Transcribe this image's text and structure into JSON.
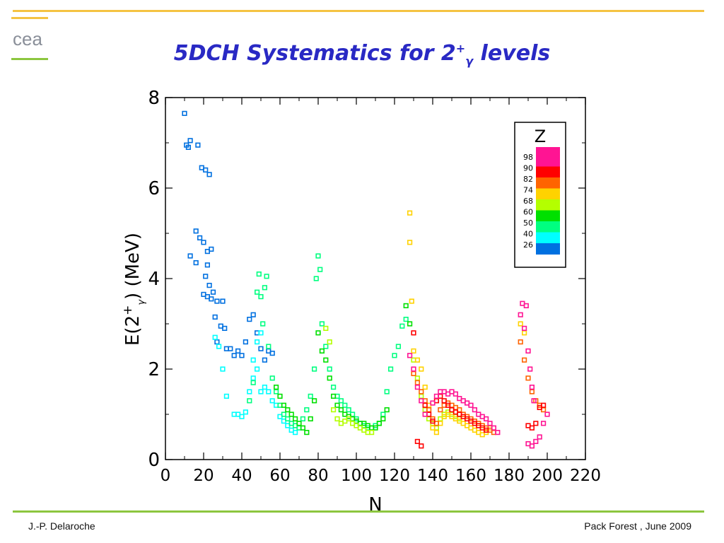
{
  "slide": {
    "title_main": "5DCH Systematics for 2",
    "title_sup": "+",
    "title_sub": "γ",
    "title_tail": " levels",
    "logo_text": "cea",
    "footer_left": "J.-P. Delaroche",
    "footer_right": "Pack Forest , June 2009",
    "colors": {
      "title": "#2929c4",
      "top_rule": "#f5c342",
      "bottom_rule": "#8cc63f",
      "logo": "#8a8f99"
    }
  },
  "chart_data": {
    "type": "scatter",
    "title": "",
    "xlabel": "N",
    "ylabel_main": "E(2",
    "ylabel_sup": "+",
    "ylabel_sub": "γ",
    "ylabel_tail": ") (MeV)",
    "xlim": [
      0,
      220
    ],
    "ylim": [
      0,
      8
    ],
    "xticks": [
      0,
      20,
      40,
      60,
      80,
      100,
      120,
      140,
      160,
      180,
      200,
      220
    ],
    "yticks": [
      0,
      2,
      4,
      6,
      8
    ],
    "grid": false,
    "legend": {
      "title": "Z",
      "placement": "top-right",
      "labels": [
        "98",
        "90",
        "82",
        "74",
        "68",
        "60",
        "50",
        "40",
        "26"
      ],
      "colors": [
        "#ff1493",
        "#ff0000",
        "#ff6400",
        "#ffd200",
        "#b4ff00",
        "#00e000",
        "#00ff80",
        "#00ffff",
        "#0070e0"
      ]
    },
    "series": [
      {
        "name": "26",
        "color": "#0070e0",
        "points": [
          [
            10,
            7.65
          ],
          [
            11,
            6.95
          ],
          [
            12,
            6.9
          ],
          [
            13,
            7.05
          ],
          [
            17,
            6.95
          ],
          [
            19,
            6.45
          ],
          [
            21,
            6.4
          ],
          [
            23,
            6.3
          ],
          [
            13,
            4.5
          ],
          [
            16,
            5.05
          ],
          [
            18,
            4.9
          ],
          [
            16,
            4.35
          ],
          [
            20,
            4.8
          ],
          [
            22,
            4.6
          ],
          [
            24,
            4.65
          ],
          [
            22,
            4.3
          ],
          [
            21,
            4.05
          ],
          [
            23,
            3.85
          ],
          [
            22,
            3.6
          ],
          [
            25,
            3.7
          ],
          [
            27,
            3.5
          ],
          [
            20,
            3.65
          ],
          [
            24,
            3.55
          ],
          [
            26,
            3.15
          ],
          [
            27,
            2.6
          ],
          [
            29,
            2.95
          ],
          [
            30,
            3.5
          ],
          [
            31,
            2.9
          ],
          [
            32,
            2.45
          ],
          [
            34,
            2.45
          ],
          [
            36,
            2.3
          ],
          [
            38,
            2.4
          ],
          [
            40,
            2.3
          ],
          [
            42,
            2.6
          ],
          [
            44,
            3.1
          ],
          [
            46,
            3.2
          ],
          [
            48,
            2.8
          ],
          [
            50,
            2.45
          ],
          [
            52,
            2.2
          ],
          [
            54,
            2.4
          ],
          [
            56,
            2.35
          ]
        ]
      },
      {
        "name": "40",
        "color": "#00ffff",
        "points": [
          [
            26,
            2.7
          ],
          [
            28,
            2.5
          ],
          [
            30,
            2.0
          ],
          [
            32,
            1.4
          ],
          [
            36,
            1.0
          ],
          [
            38,
            1.0
          ],
          [
            40,
            0.95
          ],
          [
            42,
            1.05
          ],
          [
            44,
            1.5
          ],
          [
            46,
            1.8
          ],
          [
            48,
            2.0
          ],
          [
            50,
            1.5
          ],
          [
            52,
            1.6
          ],
          [
            54,
            1.5
          ],
          [
            56,
            1.3
          ],
          [
            58,
            1.2
          ],
          [
            60,
            0.95
          ],
          [
            62,
            0.85
          ],
          [
            64,
            0.75
          ],
          [
            66,
            0.65
          ],
          [
            68,
            0.6
          ],
          [
            46,
            2.2
          ],
          [
            48,
            2.6
          ],
          [
            50,
            2.8
          ]
        ]
      },
      {
        "name": "50",
        "color": "#00ff80",
        "points": [
          [
            44,
            1.3
          ],
          [
            46,
            1.7
          ],
          [
            48,
            3.7
          ],
          [
            49,
            4.1
          ],
          [
            50,
            3.6
          ],
          [
            51,
            3.0
          ],
          [
            52,
            3.8
          ],
          [
            53,
            4.05
          ],
          [
            54,
            2.5
          ],
          [
            56,
            1.8
          ],
          [
            58,
            1.5
          ],
          [
            60,
            1.2
          ],
          [
            62,
            1.0
          ],
          [
            64,
            0.9
          ],
          [
            66,
            0.8
          ],
          [
            68,
            0.75
          ],
          [
            70,
            0.7
          ],
          [
            72,
            0.9
          ],
          [
            74,
            1.1
          ],
          [
            76,
            1.4
          ],
          [
            78,
            2.0
          ],
          [
            79,
            4.0
          ],
          [
            80,
            4.5
          ],
          [
            81,
            4.2
          ],
          [
            82,
            3.0
          ],
          [
            84,
            2.5
          ],
          [
            86,
            2.0
          ],
          [
            88,
            1.6
          ],
          [
            90,
            1.4
          ],
          [
            92,
            1.3
          ],
          [
            94,
            1.2
          ],
          [
            96,
            1.1
          ],
          [
            98,
            1.0
          ],
          [
            100,
            0.9
          ],
          [
            102,
            0.8
          ],
          [
            104,
            0.75
          ],
          [
            106,
            0.7
          ],
          [
            108,
            0.7
          ],
          [
            110,
            0.75
          ],
          [
            112,
            0.8
          ],
          [
            114,
            1.0
          ],
          [
            116,
            1.5
          ],
          [
            118,
            2.0
          ],
          [
            120,
            2.3
          ],
          [
            122,
            2.5
          ],
          [
            124,
            2.95
          ],
          [
            126,
            3.1
          ]
        ]
      },
      {
        "name": "60",
        "color": "#00e000",
        "points": [
          [
            58,
            1.6
          ],
          [
            60,
            1.4
          ],
          [
            62,
            1.2
          ],
          [
            64,
            1.1
          ],
          [
            66,
            1.0
          ],
          [
            68,
            0.9
          ],
          [
            70,
            0.8
          ],
          [
            72,
            0.7
          ],
          [
            74,
            0.6
          ],
          [
            76,
            0.9
          ],
          [
            78,
            1.3
          ],
          [
            80,
            2.8
          ],
          [
            82,
            2.4
          ],
          [
            84,
            2.2
          ],
          [
            86,
            1.8
          ],
          [
            88,
            1.4
          ],
          [
            90,
            1.2
          ],
          [
            92,
            1.1
          ],
          [
            94,
            1.0
          ],
          [
            96,
            0.95
          ],
          [
            98,
            0.9
          ],
          [
            100,
            0.85
          ],
          [
            102,
            0.8
          ],
          [
            104,
            0.8
          ],
          [
            106,
            0.75
          ],
          [
            108,
            0.7
          ],
          [
            110,
            0.7
          ],
          [
            112,
            0.8
          ],
          [
            114,
            0.9
          ],
          [
            116,
            1.1
          ],
          [
            126,
            3.4
          ],
          [
            128,
            3.0
          ]
        ]
      },
      {
        "name": "68",
        "color": "#b4ff00",
        "points": [
          [
            84,
            2.9
          ],
          [
            86,
            2.6
          ],
          [
            88,
            1.1
          ],
          [
            90,
            0.9
          ],
          [
            92,
            0.8
          ],
          [
            94,
            0.85
          ],
          [
            96,
            0.9
          ],
          [
            98,
            0.8
          ],
          [
            100,
            0.75
          ],
          [
            102,
            0.7
          ],
          [
            104,
            0.65
          ],
          [
            106,
            0.6
          ],
          [
            108,
            0.6
          ],
          [
            130,
            2.2
          ],
          [
            132,
            1.8
          ],
          [
            134,
            1.4
          ],
          [
            136,
            1.1
          ],
          [
            138,
            0.9
          ],
          [
            140,
            0.8
          ],
          [
            142,
            0.7
          ],
          [
            144,
            0.9
          ],
          [
            146,
            1.0
          ],
          [
            148,
            1.05
          ],
          [
            150,
            1.0
          ],
          [
            152,
            0.95
          ],
          [
            154,
            0.9
          ]
        ]
      },
      {
        "name": "74",
        "color": "#ffd200",
        "points": [
          [
            128,
            5.45
          ],
          [
            128,
            4.8
          ],
          [
            129,
            3.5
          ],
          [
            130,
            2.4
          ],
          [
            132,
            2.2
          ],
          [
            134,
            2.0
          ],
          [
            136,
            1.6
          ],
          [
            138,
            1.2
          ],
          [
            140,
            0.7
          ],
          [
            142,
            0.6
          ],
          [
            144,
            0.8
          ],
          [
            146,
            0.95
          ],
          [
            148,
            1.0
          ],
          [
            150,
            0.95
          ],
          [
            152,
            0.9
          ],
          [
            154,
            0.85
          ],
          [
            156,
            0.8
          ],
          [
            158,
            0.75
          ],
          [
            160,
            0.7
          ],
          [
            162,
            0.65
          ],
          [
            164,
            0.6
          ],
          [
            166,
            0.55
          ],
          [
            168,
            0.6
          ],
          [
            170,
            0.7
          ],
          [
            186,
            3.0
          ],
          [
            188,
            2.8
          ]
        ]
      },
      {
        "name": "82",
        "color": "#ff6400",
        "points": [
          [
            130,
            1.9
          ],
          [
            132,
            1.7
          ],
          [
            134,
            1.5
          ],
          [
            136,
            1.3
          ],
          [
            138,
            1.1
          ],
          [
            140,
            0.9
          ],
          [
            142,
            0.8
          ],
          [
            144,
            1.1
          ],
          [
            146,
            1.2
          ],
          [
            148,
            1.25
          ],
          [
            150,
            1.2
          ],
          [
            152,
            1.15
          ],
          [
            154,
            1.1
          ],
          [
            156,
            1.0
          ],
          [
            158,
            0.95
          ],
          [
            160,
            0.9
          ],
          [
            162,
            0.85
          ],
          [
            164,
            0.8
          ],
          [
            166,
            0.75
          ],
          [
            168,
            0.7
          ],
          [
            170,
            0.65
          ],
          [
            172,
            0.6
          ],
          [
            186,
            2.6
          ],
          [
            188,
            2.2
          ],
          [
            190,
            1.8
          ],
          [
            192,
            1.5
          ],
          [
            194,
            1.3
          ],
          [
            196,
            1.2
          ],
          [
            198,
            1.1
          ]
        ]
      },
      {
        "name": "90",
        "color": "#ff0000",
        "points": [
          [
            130,
            2.8
          ],
          [
            132,
            0.4
          ],
          [
            134,
            0.3
          ],
          [
            136,
            1.2
          ],
          [
            138,
            1.0
          ],
          [
            140,
            0.85
          ],
          [
            142,
            1.3
          ],
          [
            144,
            1.4
          ],
          [
            146,
            1.3
          ],
          [
            148,
            1.2
          ],
          [
            150,
            1.1
          ],
          [
            152,
            1.05
          ],
          [
            154,
            1.0
          ],
          [
            156,
            0.95
          ],
          [
            158,
            0.9
          ],
          [
            160,
            0.85
          ],
          [
            162,
            0.8
          ],
          [
            164,
            0.75
          ],
          [
            166,
            0.7
          ],
          [
            168,
            0.65
          ],
          [
            190,
            0.75
          ],
          [
            192,
            0.7
          ],
          [
            194,
            0.8
          ],
          [
            196,
            1.15
          ],
          [
            198,
            1.2
          ]
        ]
      },
      {
        "name": "98",
        "color": "#ff1493",
        "points": [
          [
            128,
            2.3
          ],
          [
            130,
            2.0
          ],
          [
            132,
            1.6
          ],
          [
            134,
            1.3
          ],
          [
            136,
            1.0
          ],
          [
            140,
            1.25
          ],
          [
            142,
            1.4
          ],
          [
            144,
            1.5
          ],
          [
            146,
            1.5
          ],
          [
            148,
            1.45
          ],
          [
            150,
            1.5
          ],
          [
            152,
            1.45
          ],
          [
            154,
            1.35
          ],
          [
            156,
            1.3
          ],
          [
            158,
            1.25
          ],
          [
            160,
            1.2
          ],
          [
            162,
            1.1
          ],
          [
            164,
            1.0
          ],
          [
            166,
            0.95
          ],
          [
            168,
            0.9
          ],
          [
            170,
            0.8
          ],
          [
            172,
            0.7
          ],
          [
            174,
            0.6
          ],
          [
            186,
            3.2
          ],
          [
            187,
            3.45
          ],
          [
            188,
            2.9
          ],
          [
            189,
            3.4
          ],
          [
            190,
            2.4
          ],
          [
            191,
            2.0
          ],
          [
            192,
            1.6
          ],
          [
            193,
            1.3
          ],
          [
            190,
            0.35
          ],
          [
            192,
            0.3
          ],
          [
            194,
            0.4
          ],
          [
            196,
            0.5
          ],
          [
            198,
            0.8
          ],
          [
            200,
            1.0
          ]
        ]
      }
    ]
  }
}
